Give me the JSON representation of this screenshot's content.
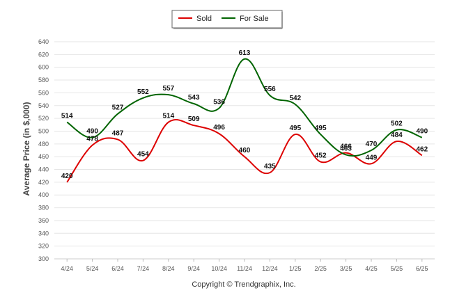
{
  "chart_data": {
    "type": "line",
    "categories": [
      "4/24",
      "5/24",
      "6/24",
      "7/24",
      "8/24",
      "9/24",
      "10/24",
      "11/24",
      "12/24",
      "1/25",
      "2/25",
      "3/25",
      "4/25",
      "5/25",
      "6/25"
    ],
    "series": [
      {
        "name": "Sold",
        "color": "#dd0000",
        "values": [
          420,
          478,
          487,
          454,
          514,
          509,
          496,
          460,
          435,
          495,
          452,
          466,
          449,
          484,
          462
        ]
      },
      {
        "name": "For Sale",
        "color": "#006400",
        "values": [
          514,
          490,
          527,
          552,
          557,
          543,
          536,
          613,
          556,
          542,
          495,
          463,
          470,
          502,
          490
        ]
      }
    ],
    "ylabel": "Average Price (in $,000)",
    "ylim": [
      300,
      640
    ],
    "yticks": [
      300,
      320,
      340,
      360,
      380,
      400,
      420,
      440,
      460,
      480,
      500,
      520,
      540,
      560,
      580,
      600,
      620,
      640
    ],
    "grid": true,
    "legend_position": "top-center"
  },
  "copyright": "Copyright © Trendgraphix, Inc."
}
